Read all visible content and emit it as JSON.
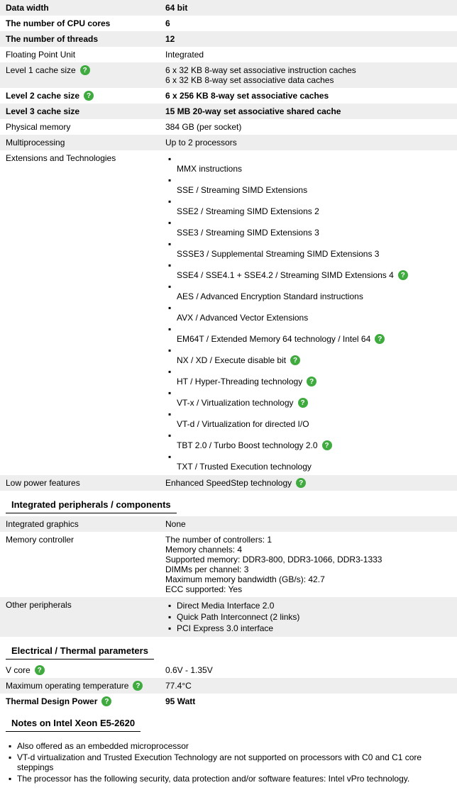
{
  "specs": {
    "data_width": {
      "label": "Data width",
      "value": "64 bit"
    },
    "cpu_cores": {
      "label": "The number of CPU cores",
      "value": "6"
    },
    "threads": {
      "label": "The number of threads",
      "value": "12"
    },
    "fpu": {
      "label": "Floating Point Unit",
      "value": "Integrated"
    },
    "l1": {
      "label": "Level 1 cache size",
      "value": "6 x 32 KB 8-way set associative instruction caches\n6 x 32 KB 8-way set associative data caches"
    },
    "l2": {
      "label": "Level 2 cache size",
      "value": "6 x 256 KB 8-way set associative caches"
    },
    "l3": {
      "label": "Level 3 cache size",
      "value": "15 MB 20-way set associative shared cache"
    },
    "phys_mem": {
      "label": "Physical memory",
      "value": "384 GB (per socket)"
    },
    "multiproc": {
      "label": "Multiprocessing",
      "value": "Up to 2 processors"
    },
    "ext_label": "Extensions and Technologies",
    "extensions": [
      {
        "text": "MMX instructions",
        "help": false
      },
      {
        "text": "SSE / Streaming SIMD Extensions",
        "help": false
      },
      {
        "text": "SSE2 / Streaming SIMD Extensions 2",
        "help": false
      },
      {
        "text": "SSE3 / Streaming SIMD Extensions 3",
        "help": false
      },
      {
        "text": "SSSE3 / Supplemental Streaming SIMD Extensions 3",
        "help": false
      },
      {
        "text": "SSE4 / SSE4.1 + SSE4.2 / Streaming SIMD Extensions 4",
        "help": true
      },
      {
        "text": "AES / Advanced Encryption Standard instructions",
        "help": false
      },
      {
        "text": "AVX / Advanced Vector Extensions",
        "help": false
      },
      {
        "text": "EM64T / Extended Memory 64 technology / Intel 64",
        "help": true
      },
      {
        "text": "NX / XD / Execute disable bit",
        "help": true
      },
      {
        "text": "HT / Hyper-Threading technology",
        "help": true
      },
      {
        "text": "VT-x / Virtualization technology",
        "help": true
      },
      {
        "text": "VT-d / Virtualization for directed I/O",
        "help": false
      },
      {
        "text": "TBT 2.0 / Turbo Boost technology 2.0",
        "help": true
      },
      {
        "text": "TXT / Trusted Execution technology",
        "help": false
      }
    ],
    "low_power": {
      "label": "Low power features",
      "value": "Enhanced SpeedStep technology"
    }
  },
  "sections": {
    "integrated": {
      "title": "Integrated peripherals / components",
      "graphics": {
        "label": "Integrated graphics",
        "value": "None"
      },
      "memctrl": {
        "label": "Memory controller",
        "value": "The number of controllers: 1\nMemory channels: 4\nSupported memory: DDR3-800, DDR3-1066, DDR3-1333\nDIMMs per channel: 3\nMaximum memory bandwidth (GB/s): 42.7\nECC supported: Yes"
      },
      "other_label": "Other peripherals",
      "other": [
        "Direct Media Interface 2.0",
        "Quick Path Interconnect (2 links)",
        "PCI Express 3.0 interface"
      ]
    },
    "electrical": {
      "title": "Electrical / Thermal parameters",
      "vcore": {
        "label": "V core",
        "value": "0.6V - 1.35V"
      },
      "maxtemp": {
        "label": "Maximum operating temperature",
        "value": "77.4°C"
      },
      "tdp": {
        "label": "Thermal Design Power",
        "value": "95 Watt"
      }
    },
    "notes": {
      "title": "Notes on Intel Xeon E5-2620",
      "items": [
        "Also offered as an embedded microprocessor",
        "VT-d virtualization and Trusted Execution Technology are not supported on processors with C0 and C1 core steppings",
        "The processor has the following security, data protection and/or software features: Intel vPro technology."
      ]
    }
  },
  "help_glyph": "?"
}
